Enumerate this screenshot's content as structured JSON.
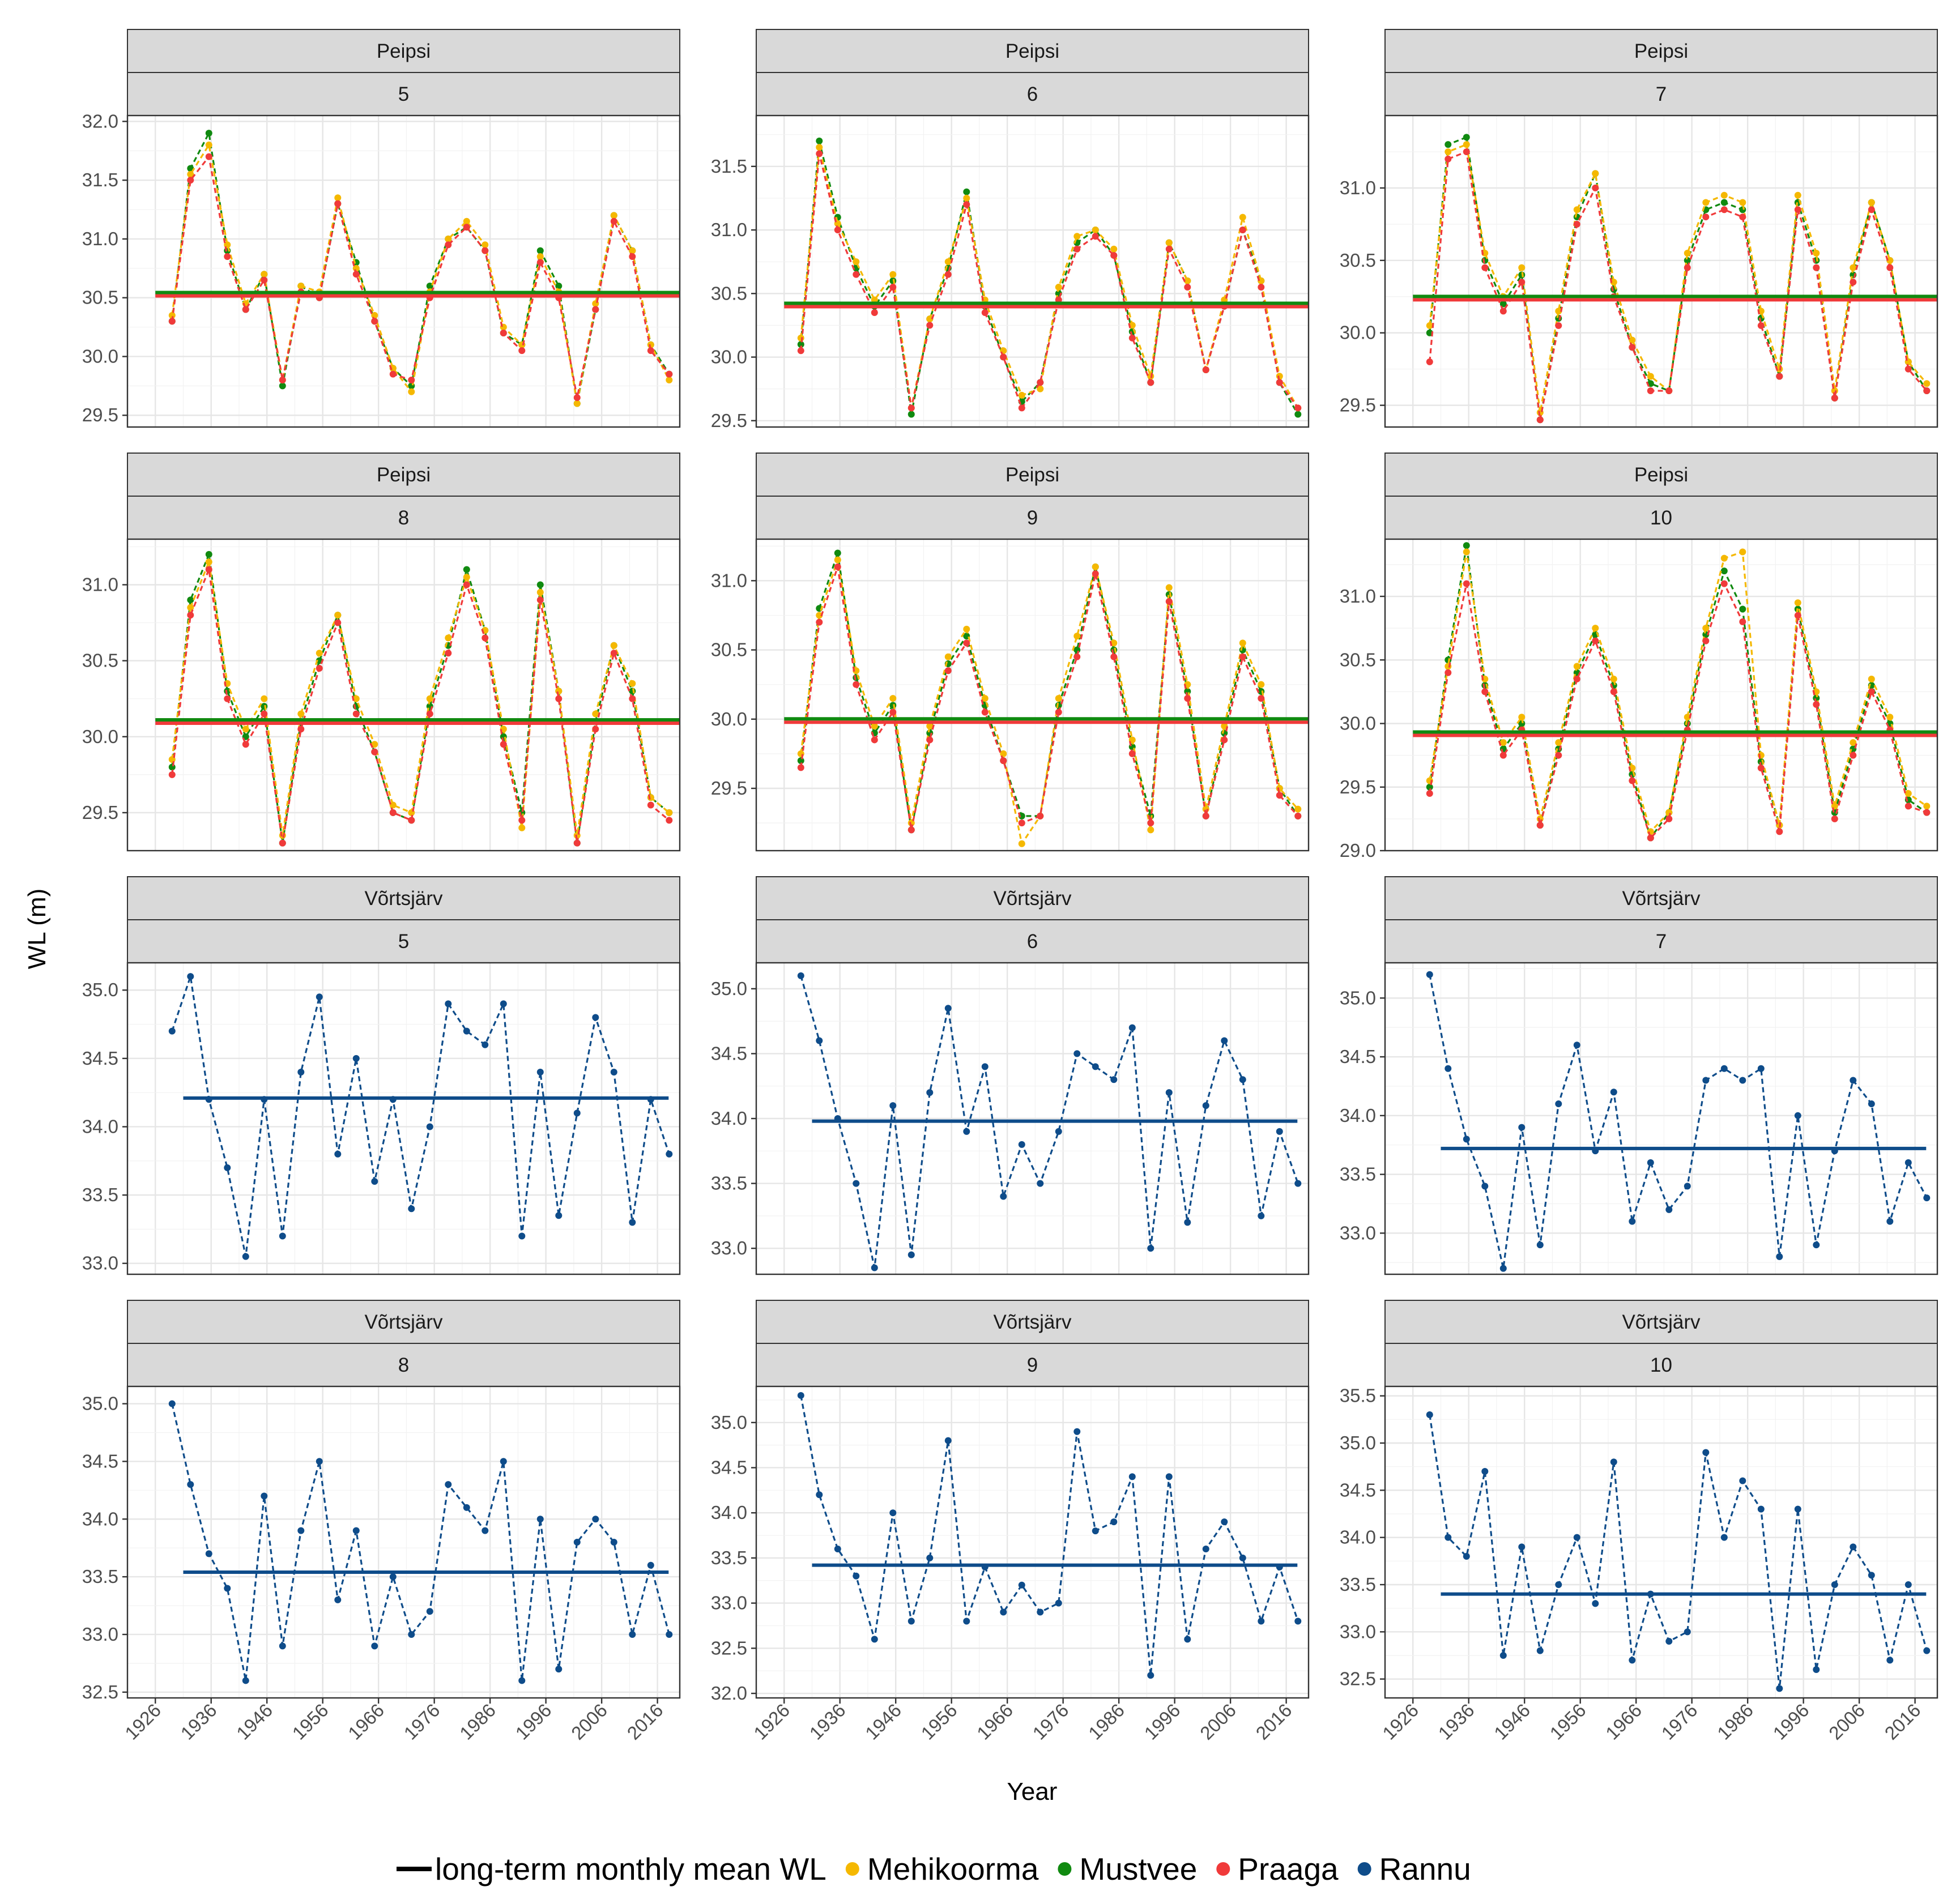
{
  "figure": {
    "ylabel": "WL (m)",
    "xlabel": "Year",
    "x_ticks": [
      "1926",
      "1936",
      "1946",
      "1956",
      "1966",
      "1976",
      "1986",
      "1996",
      "2006",
      "2016"
    ]
  },
  "legend": {
    "items": [
      {
        "label": "long-term monthly mean WL",
        "kind": "line",
        "color": "#000000"
      },
      {
        "label": "Mehikoorma",
        "kind": "point",
        "color": "#F5B800"
      },
      {
        "label": "Mustvee",
        "kind": "point",
        "color": "#108A10"
      },
      {
        "label": "Praaga",
        "kind": "point",
        "color": "#F03A3A"
      },
      {
        "label": "Rannu",
        "kind": "point",
        "color": "#0E4C8A"
      }
    ]
  },
  "chart_data": [
    {
      "type": "line",
      "lake": "Peipsi",
      "month": "5",
      "ylim": [
        29.4,
        32.05
      ],
      "yticks": [
        "29.5",
        "30.0",
        "30.5",
        "31.0",
        "31.5",
        "32.0"
      ],
      "mean": 30.53,
      "series": [
        {
          "name": "Mustvee",
          "values": [
            30.3,
            31.6,
            31.9,
            30.9,
            30.4,
            30.7,
            29.75,
            30.6,
            30.5,
            31.3,
            30.8,
            30.3,
            29.9,
            29.75,
            30.6,
            31.0,
            31.1,
            30.9,
            30.2,
            30.1,
            30.9,
            30.6,
            29.6,
            30.4,
            31.2,
            30.9,
            30.1,
            29.85
          ]
        },
        {
          "name": "Mehikoorma",
          "values": [
            30.35,
            31.55,
            31.8,
            30.95,
            30.45,
            30.7,
            29.8,
            30.6,
            30.55,
            31.35,
            30.75,
            30.35,
            29.9,
            29.7,
            30.55,
            31.0,
            31.15,
            30.95,
            30.25,
            30.1,
            30.85,
            30.55,
            29.6,
            30.45,
            31.2,
            30.9,
            30.1,
            29.8
          ]
        },
        {
          "name": "Praaga",
          "values": [
            30.3,
            31.5,
            31.7,
            30.85,
            30.4,
            30.65,
            29.8,
            30.55,
            30.5,
            31.3,
            30.7,
            30.3,
            29.85,
            29.8,
            30.5,
            30.95,
            31.1,
            30.9,
            30.2,
            30.05,
            30.8,
            30.5,
            29.65,
            30.4,
            31.15,
            30.85,
            30.05,
            29.85
          ]
        }
      ]
    },
    {
      "type": "line",
      "lake": "Peipsi",
      "month": "6",
      "ylim": [
        29.45,
        31.9
      ],
      "yticks": [
        "29.5",
        "30.0",
        "30.5",
        "31.0",
        "31.5"
      ],
      "mean": 30.41,
      "series": [
        {
          "name": "Mustvee",
          "values": [
            30.1,
            31.7,
            31.1,
            30.7,
            30.4,
            30.6,
            29.55,
            30.3,
            30.7,
            31.3,
            30.4,
            30.0,
            29.65,
            29.8,
            30.5,
            30.9,
            31.0,
            30.8,
            30.2,
            29.8,
            30.9,
            30.6,
            29.9,
            30.4,
            31.0,
            30.6,
            29.8,
            29.55
          ]
        },
        {
          "name": "Mehikoorma",
          "values": [
            30.15,
            31.65,
            31.05,
            30.75,
            30.45,
            30.65,
            29.6,
            30.3,
            30.75,
            31.25,
            30.45,
            30.05,
            29.7,
            29.75,
            30.55,
            30.95,
            31.0,
            30.85,
            30.25,
            29.85,
            30.9,
            30.6,
            29.9,
            30.45,
            31.1,
            30.6,
            29.85,
            29.6
          ]
        },
        {
          "name": "Praaga",
          "values": [
            30.05,
            31.6,
            31.0,
            30.65,
            30.35,
            30.55,
            29.6,
            30.25,
            30.65,
            31.2,
            30.35,
            30.0,
            29.6,
            29.8,
            30.45,
            30.85,
            30.95,
            30.8,
            30.15,
            29.8,
            30.85,
            30.55,
            29.9,
            30.4,
            31.0,
            30.55,
            29.8,
            29.6
          ]
        }
      ]
    },
    {
      "type": "line",
      "lake": "Peipsi",
      "month": "7",
      "ylim": [
        29.35,
        31.5
      ],
      "yticks": [
        "29.5",
        "30.0",
        "30.5",
        "31.0"
      ],
      "mean": 30.24,
      "series": [
        {
          "name": "Mustvee",
          "values": [
            30.0,
            31.3,
            31.35,
            30.5,
            30.2,
            30.4,
            29.4,
            30.1,
            30.8,
            31.1,
            30.3,
            29.9,
            29.65,
            29.6,
            30.5,
            30.85,
            30.9,
            30.85,
            30.1,
            29.7,
            30.9,
            30.5,
            29.55,
            30.4,
            30.9,
            30.5,
            29.8,
            29.6
          ]
        },
        {
          "name": "Mehikoorma",
          "values": [
            30.05,
            31.25,
            31.3,
            30.55,
            30.25,
            30.45,
            29.45,
            30.15,
            30.85,
            31.1,
            30.35,
            29.95,
            29.7,
            29.6,
            30.55,
            30.9,
            30.95,
            30.9,
            30.15,
            29.75,
            30.95,
            30.55,
            29.6,
            30.45,
            30.9,
            30.5,
            29.8,
            29.65
          ]
        },
        {
          "name": "Praaga",
          "values": [
            29.8,
            31.2,
            31.25,
            30.45,
            30.15,
            30.35,
            29.4,
            30.05,
            30.75,
            31.0,
            30.25,
            29.9,
            29.6,
            29.6,
            30.45,
            30.8,
            30.85,
            30.8,
            30.05,
            29.7,
            30.85,
            30.45,
            29.55,
            30.35,
            30.85,
            30.45,
            29.75,
            29.6
          ]
        }
      ]
    },
    {
      "type": "line",
      "lake": "Peipsi",
      "month": "8",
      "ylim": [
        29.25,
        31.3
      ],
      "yticks": [
        "29.5",
        "30.0",
        "30.5",
        "31.0"
      ],
      "mean": 30.1,
      "series": [
        {
          "name": "Mustvee",
          "values": [
            29.8,
            30.9,
            31.2,
            30.3,
            30.0,
            30.2,
            29.3,
            30.1,
            30.5,
            30.8,
            30.2,
            29.9,
            29.5,
            29.45,
            30.2,
            30.6,
            31.1,
            30.7,
            30.0,
            29.5,
            31.0,
            30.3,
            29.3,
            30.1,
            30.6,
            30.3,
            29.6,
            29.5
          ]
        },
        {
          "name": "Mehikoorma",
          "values": [
            29.85,
            30.85,
            31.15,
            30.35,
            30.05,
            30.25,
            29.35,
            30.15,
            30.55,
            30.8,
            30.25,
            29.95,
            29.55,
            29.5,
            30.25,
            30.65,
            31.05,
            30.7,
            30.05,
            29.4,
            30.95,
            30.3,
            29.35,
            30.15,
            30.6,
            30.35,
            29.6,
            29.5
          ]
        },
        {
          "name": "Praaga",
          "values": [
            29.75,
            30.8,
            31.1,
            30.25,
            29.95,
            30.15,
            29.3,
            30.05,
            30.45,
            30.75,
            30.15,
            29.9,
            29.5,
            29.45,
            30.15,
            30.55,
            31.0,
            30.65,
            29.95,
            29.45,
            30.9,
            30.25,
            29.3,
            30.05,
            30.55,
            30.25,
            29.55,
            29.45
          ]
        }
      ]
    },
    {
      "type": "line",
      "lake": "Peipsi",
      "month": "9",
      "ylim": [
        29.05,
        31.3
      ],
      "yticks": [
        "29.5",
        "30.0",
        "30.5",
        "31.0"
      ],
      "mean": 29.99,
      "series": [
        {
          "name": "Mustvee",
          "values": [
            29.7,
            30.8,
            31.2,
            30.3,
            29.9,
            30.1,
            29.2,
            29.9,
            30.4,
            30.6,
            30.1,
            29.7,
            29.3,
            29.3,
            30.1,
            30.5,
            31.1,
            30.5,
            29.8,
            29.3,
            30.9,
            30.2,
            29.3,
            29.9,
            30.5,
            30.2,
            29.5,
            29.3
          ]
        },
        {
          "name": "Mehikoorma",
          "values": [
            29.75,
            30.75,
            31.15,
            30.35,
            29.95,
            30.15,
            29.25,
            29.95,
            30.45,
            30.65,
            30.15,
            29.75,
            29.1,
            29.3,
            30.15,
            30.6,
            31.1,
            30.55,
            29.85,
            29.2,
            30.95,
            30.25,
            29.35,
            29.95,
            30.55,
            30.25,
            29.5,
            29.35
          ]
        },
        {
          "name": "Praaga",
          "values": [
            29.65,
            30.7,
            31.1,
            30.25,
            29.85,
            30.05,
            29.2,
            29.85,
            30.35,
            30.55,
            30.05,
            29.7,
            29.25,
            29.3,
            30.05,
            30.45,
            31.05,
            30.45,
            29.75,
            29.25,
            30.85,
            30.15,
            29.3,
            29.85,
            30.45,
            30.15,
            29.45,
            29.3
          ]
        }
      ]
    },
    {
      "type": "line",
      "lake": "Peipsi",
      "month": "10",
      "ylim": [
        29.0,
        31.45
      ],
      "yticks": [
        "29.0",
        "29.5",
        "30.0",
        "30.5",
        "31.0"
      ],
      "mean": 29.92,
      "series": [
        {
          "name": "Mustvee",
          "values": [
            29.5,
            30.5,
            31.4,
            30.3,
            29.8,
            30.0,
            29.2,
            29.8,
            30.4,
            30.7,
            30.3,
            29.6,
            29.1,
            29.3,
            30.0,
            30.7,
            31.2,
            30.9,
            29.7,
            29.2,
            30.9,
            30.2,
            29.3,
            29.8,
            30.3,
            30.0,
            29.4,
            29.3
          ]
        },
        {
          "name": "Mehikoorma",
          "values": [
            29.55,
            30.45,
            31.35,
            30.35,
            29.85,
            30.05,
            29.25,
            29.85,
            30.45,
            30.75,
            30.35,
            29.65,
            29.15,
            29.3,
            30.05,
            30.75,
            31.3,
            31.35,
            29.75,
            29.2,
            30.95,
            30.25,
            29.35,
            29.85,
            30.35,
            30.05,
            29.45,
            29.35
          ]
        },
        {
          "name": "Praaga",
          "values": [
            29.45,
            30.4,
            31.1,
            30.25,
            29.75,
            29.95,
            29.2,
            29.75,
            30.35,
            30.65,
            30.25,
            29.55,
            29.1,
            29.25,
            29.95,
            30.65,
            31.1,
            30.8,
            29.65,
            29.15,
            30.85,
            30.15,
            29.25,
            29.75,
            30.25,
            29.95,
            29.35,
            29.3
          ]
        }
      ]
    },
    {
      "type": "line",
      "lake": "Võrtsjärv",
      "month": "5",
      "ylim": [
        32.92,
        35.2
      ],
      "yticks": [
        "33.0",
        "33.5",
        "34.0",
        "34.5",
        "35.0"
      ],
      "mean": 34.21,
      "series": [
        {
          "name": "Rannu",
          "values": [
            34.7,
            35.1,
            34.2,
            33.7,
            33.05,
            34.2,
            33.2,
            34.4,
            34.95,
            33.8,
            34.5,
            33.6,
            34.2,
            33.4,
            34.0,
            34.9,
            34.7,
            34.6,
            34.9,
            33.2,
            34.4,
            33.35,
            34.1,
            34.8,
            34.4,
            33.3,
            34.2,
            33.8
          ]
        }
      ]
    },
    {
      "type": "line",
      "lake": "Võrtsjärv",
      "month": "6",
      "ylim": [
        32.8,
        35.2
      ],
      "yticks": [
        "33.0",
        "33.5",
        "34.0",
        "34.5",
        "35.0"
      ],
      "mean": 33.98,
      "series": [
        {
          "name": "Rannu",
          "values": [
            35.1,
            34.6,
            34.0,
            33.5,
            32.85,
            34.1,
            32.95,
            34.2,
            34.85,
            33.9,
            34.4,
            33.4,
            33.8,
            33.5,
            33.9,
            34.5,
            34.4,
            34.3,
            34.7,
            33.0,
            34.2,
            33.2,
            34.1,
            34.6,
            34.3,
            33.25,
            33.9,
            33.5
          ]
        }
      ]
    },
    {
      "type": "line",
      "lake": "Võrtsjärv",
      "month": "7",
      "ylim": [
        32.65,
        35.3
      ],
      "yticks": [
        "33.0",
        "33.5",
        "34.0",
        "34.5",
        "35.0"
      ],
      "mean": 33.72,
      "series": [
        {
          "name": "Rannu",
          "values": [
            35.2,
            34.4,
            33.8,
            33.4,
            32.7,
            33.9,
            32.9,
            34.1,
            34.6,
            33.7,
            34.2,
            33.1,
            33.6,
            33.2,
            33.4,
            34.3,
            34.4,
            34.3,
            34.4,
            32.8,
            34.0,
            32.9,
            33.7,
            34.3,
            34.1,
            33.1,
            33.6,
            33.3
          ]
        }
      ]
    },
    {
      "type": "line",
      "lake": "Võrtsjärv",
      "month": "8",
      "ylim": [
        32.45,
        35.15
      ],
      "yticks": [
        "32.5",
        "33.0",
        "33.5",
        "34.0",
        "34.5",
        "35.0"
      ],
      "mean": 33.54,
      "series": [
        {
          "name": "Rannu",
          "values": [
            35.0,
            34.3,
            33.7,
            33.4,
            32.6,
            34.2,
            32.9,
            33.9,
            34.5,
            33.3,
            33.9,
            32.9,
            33.5,
            33.0,
            33.2,
            34.3,
            34.1,
            33.9,
            34.5,
            32.6,
            34.0,
            32.7,
            33.8,
            34.0,
            33.8,
            33.0,
            33.6,
            33.0
          ]
        }
      ]
    },
    {
      "type": "line",
      "lake": "Võrtsjärv",
      "month": "9",
      "ylim": [
        31.95,
        35.4
      ],
      "yticks": [
        "32.0",
        "32.5",
        "33.0",
        "33.5",
        "34.0",
        "34.5",
        "35.0"
      ],
      "mean": 33.42,
      "series": [
        {
          "name": "Rannu",
          "values": [
            35.3,
            34.2,
            33.6,
            33.3,
            32.6,
            34.0,
            32.8,
            33.5,
            34.8,
            32.8,
            33.4,
            32.9,
            33.2,
            32.9,
            33.0,
            34.9,
            33.8,
            33.9,
            34.4,
            32.2,
            34.4,
            32.6,
            33.6,
            33.9,
            33.5,
            32.8,
            33.4,
            32.8
          ]
        }
      ]
    },
    {
      "type": "line",
      "lake": "Võrtsjärv",
      "month": "10",
      "ylim": [
        32.3,
        35.6
      ],
      "yticks": [
        "32.5",
        "33.0",
        "33.5",
        "34.0",
        "34.5",
        "35.0",
        "35.5"
      ],
      "mean": 33.4,
      "series": [
        {
          "name": "Rannu",
          "values": [
            35.3,
            34.0,
            33.8,
            34.7,
            32.75,
            33.9,
            32.8,
            33.5,
            34.0,
            33.3,
            34.8,
            32.7,
            33.4,
            32.9,
            33.0,
            34.9,
            34.0,
            34.6,
            34.3,
            32.4,
            34.3,
            32.6,
            33.5,
            33.9,
            33.6,
            32.7,
            33.5,
            32.8
          ]
        }
      ]
    }
  ]
}
